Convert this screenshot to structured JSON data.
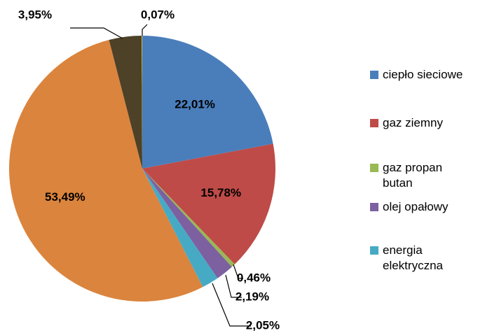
{
  "chart_data": {
    "type": "pie",
    "categories": [
      "ciepło sieciowe",
      "gaz ziemny",
      "gaz propan butan",
      "olej opałowy",
      "energia elektryczna",
      null,
      null,
      null
    ],
    "values": [
      22.01,
      15.78,
      0.46,
      2.19,
      2.05,
      53.49,
      3.95,
      0.07
    ],
    "value_labels": [
      "22,01%",
      "15,78%",
      "0,46%",
      "2,19%",
      "2,05%",
      "53,49%",
      "3,95%",
      "0,07%"
    ],
    "colors": [
      "#4a7ebb",
      "#be4b48",
      "#98b954",
      "#7d60a0",
      "#46aac5",
      "#db843d",
      "#4d4127",
      "#c9c23a"
    ]
  }
}
